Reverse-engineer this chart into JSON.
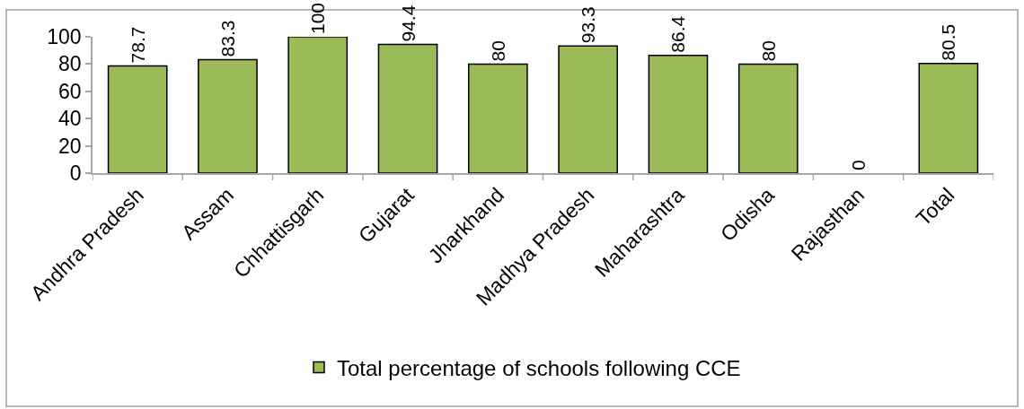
{
  "chart_data": {
    "type": "bar",
    "categories": [
      "Andhra Pradesh",
      "Assam",
      "Chhattisgarh",
      "Gujarat",
      "Jharkhand",
      "Madhya Pradesh",
      "Maharashtra",
      "Odisha",
      "Rajasthan",
      "Total"
    ],
    "series": [
      {
        "name": "Total percentage of schools following CCE",
        "color": "#9bbb59",
        "values": [
          78.7,
          83.3,
          100,
          94.4,
          80,
          93.3,
          86.4,
          80,
          0,
          80.5
        ]
      }
    ],
    "ylim": [
      0,
      100
    ],
    "yticks": [
      0,
      20,
      40,
      60,
      80,
      100
    ],
    "data_labels": true,
    "grid": false,
    "legend": "bottom"
  }
}
